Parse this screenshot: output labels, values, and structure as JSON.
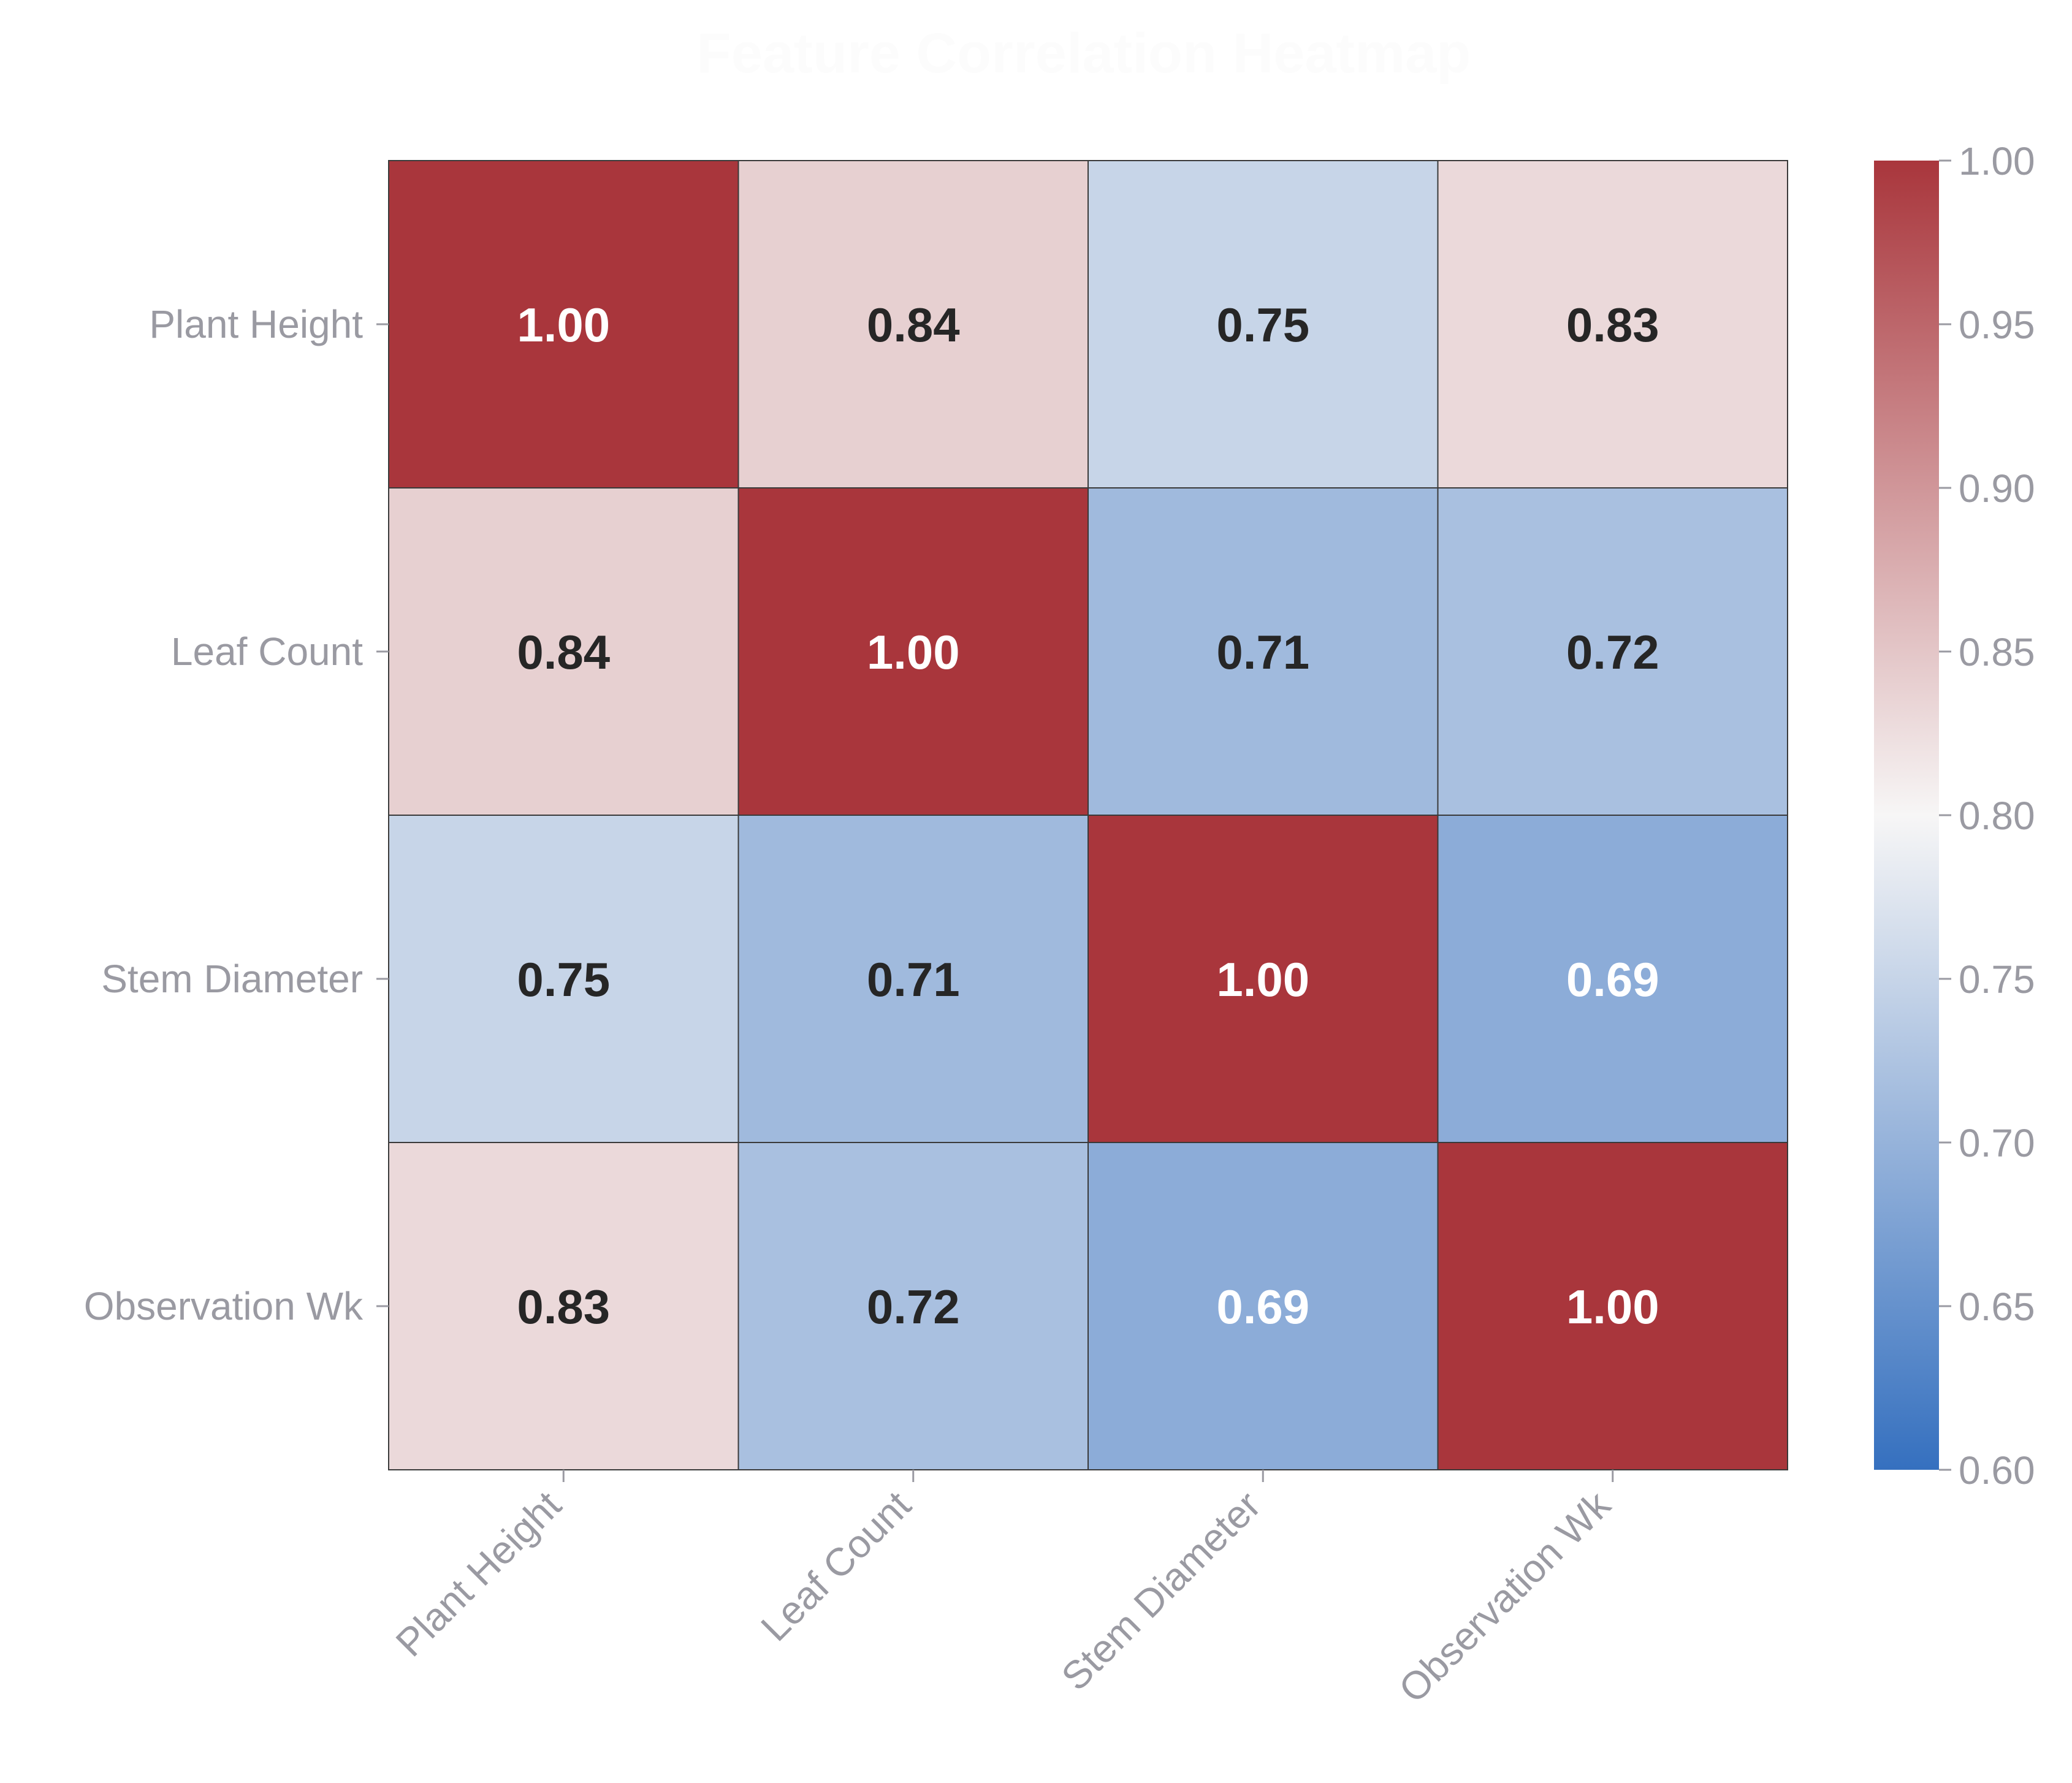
{
  "chart_data": {
    "type": "heatmap",
    "title": "Feature Correlation Heatmap",
    "rows": [
      "Plant Height",
      "Leaf Count",
      "Stem Diameter",
      "Observation Wk"
    ],
    "columns": [
      "Plant Height",
      "Leaf Count",
      "Stem Diameter",
      "Observation Wk"
    ],
    "values": [
      [
        1.0,
        0.84,
        0.75,
        0.83
      ],
      [
        0.84,
        1.0,
        0.71,
        0.72
      ],
      [
        0.75,
        0.71,
        1.0,
        0.69
      ],
      [
        0.83,
        0.72,
        0.69,
        1.0
      ]
    ],
    "value_format": "0.00",
    "colormap": "vlag",
    "colorbar": {
      "range": [
        0.6,
        1.0
      ],
      "ticks": [
        "0.60",
        "0.65",
        "0.70",
        "0.75",
        "0.80",
        "0.85",
        "0.90",
        "0.95",
        "1.00"
      ],
      "colors": {
        "low": "#3570bf",
        "mid": "#f7f6f6",
        "high": "#a9363c"
      }
    },
    "text_colors": {
      "dark": "#262626",
      "light": "#ffffff"
    },
    "grid": false,
    "legend": "none"
  }
}
